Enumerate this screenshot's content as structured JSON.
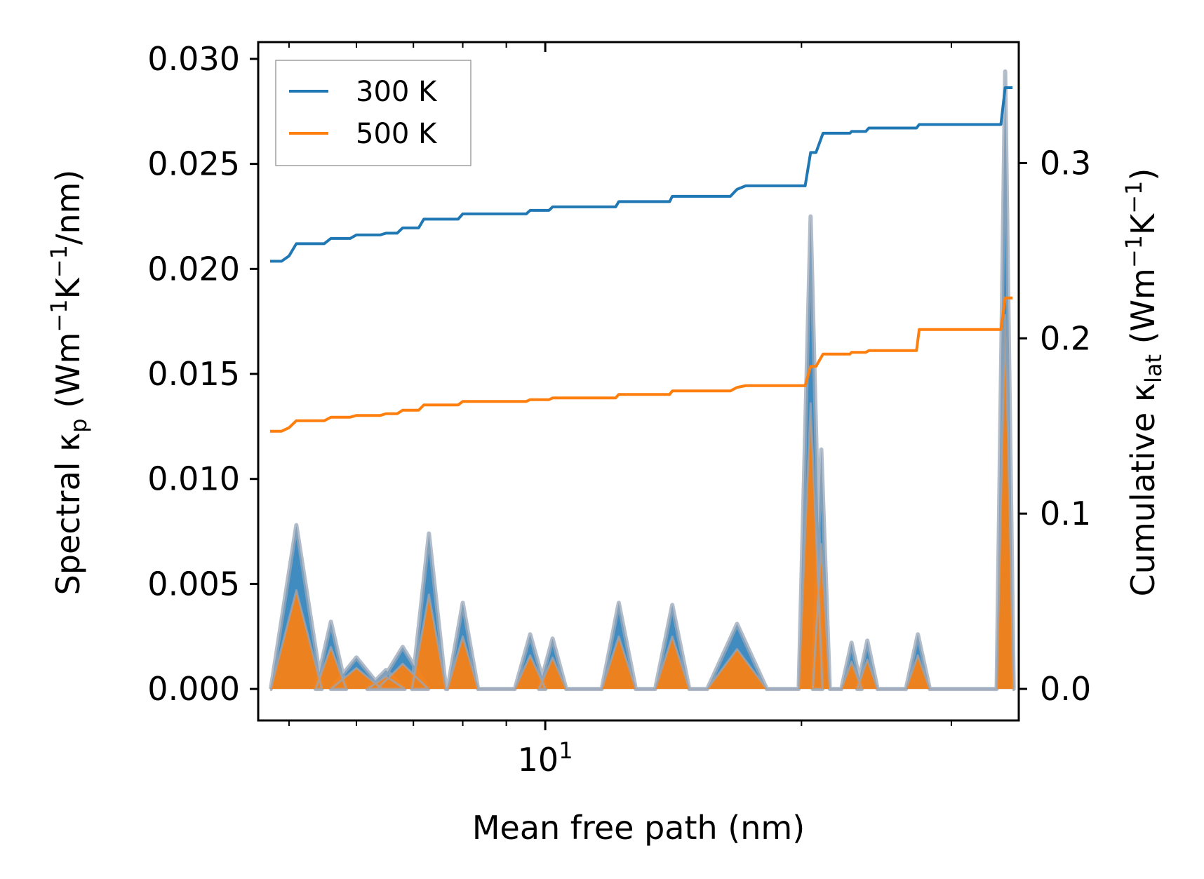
{
  "chart_data": {
    "type": "line",
    "title": "",
    "xlabel": "Mean free path (nm)",
    "ylabel_left": "Spectral κ",
    "ylabel_left_sub": "p",
    "ylabel_left_units": "(Wm",
    "ylabel_left_units2": "K",
    "ylabel_left_units3": "/nm)",
    "ylabel_right": "Cumulative κ",
    "ylabel_right_sub": "lat",
    "ylabel_right_units": "(Wm",
    "ylabel_right_units2": "K",
    "ylabel_right_units3": ")",
    "exp_neg1": "−1",
    "x_scale": "log",
    "xlim": [
      4.6,
      36
    ],
    "ylim_left": [
      -0.0015,
      0.0308
    ],
    "ylim_right": [
      -0.018,
      0.369
    ],
    "x_tick_major": [
      {
        "value": 10,
        "base": "10",
        "exp": "1"
      }
    ],
    "x_tick_minor": [
      5,
      6,
      7,
      8,
      9,
      20,
      30
    ],
    "y_left_ticks": [
      {
        "value": 0.0,
        "label": "0.000"
      },
      {
        "value": 0.005,
        "label": "0.005"
      },
      {
        "value": 0.01,
        "label": "0.010"
      },
      {
        "value": 0.015,
        "label": "0.015"
      },
      {
        "value": 0.02,
        "label": "0.020"
      },
      {
        "value": 0.025,
        "label": "0.025"
      },
      {
        "value": 0.03,
        "label": "0.030"
      }
    ],
    "y_right_ticks": [
      {
        "value": 0.0,
        "label": "0.0"
      },
      {
        "value": 0.1,
        "label": "0.1"
      },
      {
        "value": 0.2,
        "label": "0.2"
      },
      {
        "value": 0.3,
        "label": "0.3"
      }
    ],
    "legend": {
      "position": "top-left",
      "entries": [
        "300 K",
        "500 K"
      ]
    },
    "colors": {
      "300 K": "#1f77b4",
      "500 K": "#ff7f0e",
      "spectral_edge": "#9aa7b8"
    },
    "spectral_series": [
      {
        "name": "300 K",
        "peaks": [
          {
            "x": 5.1,
            "y": 0.0078,
            "w": 0.03
          },
          {
            "x": 5.6,
            "y": 0.0032,
            "w": 0.018
          },
          {
            "x": 6.0,
            "y": 0.0015,
            "w": 0.03
          },
          {
            "x": 6.5,
            "y": 0.0009,
            "w": 0.022
          },
          {
            "x": 6.8,
            "y": 0.002,
            "w": 0.03
          },
          {
            "x": 7.3,
            "y": 0.0074,
            "w": 0.02
          },
          {
            "x": 8.0,
            "y": 0.0041,
            "w": 0.018
          },
          {
            "x": 9.6,
            "y": 0.0026,
            "w": 0.018
          },
          {
            "x": 10.2,
            "y": 0.0024,
            "w": 0.016
          },
          {
            "x": 12.2,
            "y": 0.0041,
            "w": 0.02
          },
          {
            "x": 14.1,
            "y": 0.004,
            "w": 0.02
          },
          {
            "x": 16.8,
            "y": 0.0031,
            "w": 0.035
          },
          {
            "x": 20.5,
            "y": 0.0225,
            "w": 0.014
          },
          {
            "x": 21.1,
            "y": 0.0114,
            "w": 0.01
          },
          {
            "x": 22.9,
            "y": 0.0022,
            "w": 0.012
          },
          {
            "x": 23.9,
            "y": 0.0023,
            "w": 0.012
          },
          {
            "x": 27.4,
            "y": 0.0026,
            "w": 0.014
          },
          {
            "x": 34.7,
            "y": 0.0294,
            "w": 0.01
          }
        ]
      },
      {
        "name": "500 K",
        "peaks": [
          {
            "x": 5.1,
            "y": 0.0047,
            "w": 0.03
          },
          {
            "x": 5.6,
            "y": 0.002,
            "w": 0.018
          },
          {
            "x": 6.0,
            "y": 0.001,
            "w": 0.03
          },
          {
            "x": 6.5,
            "y": 0.0006,
            "w": 0.022
          },
          {
            "x": 6.8,
            "y": 0.0012,
            "w": 0.03
          },
          {
            "x": 7.3,
            "y": 0.0045,
            "w": 0.02
          },
          {
            "x": 8.0,
            "y": 0.0025,
            "w": 0.018
          },
          {
            "x": 9.6,
            "y": 0.0016,
            "w": 0.018
          },
          {
            "x": 10.2,
            "y": 0.0015,
            "w": 0.016
          },
          {
            "x": 12.2,
            "y": 0.0025,
            "w": 0.02
          },
          {
            "x": 14.1,
            "y": 0.0025,
            "w": 0.02
          },
          {
            "x": 16.8,
            "y": 0.0019,
            "w": 0.035
          },
          {
            "x": 20.5,
            "y": 0.0136,
            "w": 0.014
          },
          {
            "x": 21.1,
            "y": 0.0069,
            "w": 0.01
          },
          {
            "x": 22.9,
            "y": 0.0013,
            "w": 0.012
          },
          {
            "x": 23.9,
            "y": 0.0014,
            "w": 0.012
          },
          {
            "x": 27.4,
            "y": 0.0016,
            "w": 0.014
          },
          {
            "x": 34.7,
            "y": 0.0178,
            "w": 0.01
          }
        ]
      }
    ],
    "cumulative_series": [
      {
        "name": "300 K",
        "points": [
          [
            4.75,
            0.244
          ],
          [
            4.9,
            0.244
          ],
          [
            5.0,
            0.247
          ],
          [
            5.1,
            0.254
          ],
          [
            5.5,
            0.254
          ],
          [
            5.6,
            0.257
          ],
          [
            5.9,
            0.257
          ],
          [
            6.0,
            0.259
          ],
          [
            6.4,
            0.259
          ],
          [
            6.5,
            0.26
          ],
          [
            6.7,
            0.26
          ],
          [
            6.8,
            0.263
          ],
          [
            7.1,
            0.263
          ],
          [
            7.2,
            0.268
          ],
          [
            7.9,
            0.268
          ],
          [
            8.0,
            0.271
          ],
          [
            9.5,
            0.271
          ],
          [
            9.6,
            0.273
          ],
          [
            10.1,
            0.273
          ],
          [
            10.2,
            0.275
          ],
          [
            12.1,
            0.275
          ],
          [
            12.2,
            0.278
          ],
          [
            14.0,
            0.278
          ],
          [
            14.1,
            0.281
          ],
          [
            16.5,
            0.281
          ],
          [
            16.8,
            0.285
          ],
          [
            17.2,
            0.287
          ],
          [
            20.2,
            0.287
          ],
          [
            20.5,
            0.306
          ],
          [
            20.8,
            0.306
          ],
          [
            21.2,
            0.317
          ],
          [
            22.8,
            0.317
          ],
          [
            22.9,
            0.318
          ],
          [
            23.8,
            0.318
          ],
          [
            24.0,
            0.32
          ],
          [
            27.3,
            0.32
          ],
          [
            27.5,
            0.322
          ],
          [
            34.3,
            0.322
          ],
          [
            34.7,
            0.343
          ],
          [
            35.4,
            0.343
          ]
        ]
      },
      {
        "name": "500 K",
        "points": [
          [
            4.75,
            0.147
          ],
          [
            4.9,
            0.147
          ],
          [
            5.0,
            0.149
          ],
          [
            5.1,
            0.153
          ],
          [
            5.5,
            0.153
          ],
          [
            5.6,
            0.155
          ],
          [
            5.9,
            0.155
          ],
          [
            6.0,
            0.156
          ],
          [
            6.4,
            0.156
          ],
          [
            6.5,
            0.157
          ],
          [
            6.7,
            0.157
          ],
          [
            6.8,
            0.159
          ],
          [
            7.1,
            0.159
          ],
          [
            7.2,
            0.162
          ],
          [
            7.9,
            0.162
          ],
          [
            8.0,
            0.164
          ],
          [
            9.5,
            0.164
          ],
          [
            9.6,
            0.165
          ],
          [
            10.1,
            0.165
          ],
          [
            10.2,
            0.166
          ],
          [
            12.1,
            0.166
          ],
          [
            12.2,
            0.168
          ],
          [
            14.0,
            0.168
          ],
          [
            14.1,
            0.17
          ],
          [
            16.5,
            0.17
          ],
          [
            16.8,
            0.172
          ],
          [
            17.2,
            0.173
          ],
          [
            20.2,
            0.173
          ],
          [
            20.5,
            0.184
          ],
          [
            20.8,
            0.184
          ],
          [
            21.2,
            0.191
          ],
          [
            22.8,
            0.191
          ],
          [
            22.9,
            0.192
          ],
          [
            23.8,
            0.192
          ],
          [
            24.0,
            0.193
          ],
          [
            27.3,
            0.193
          ],
          [
            27.5,
            0.205
          ],
          [
            34.3,
            0.205
          ],
          [
            34.7,
            0.223
          ],
          [
            35.4,
            0.223
          ]
        ]
      }
    ]
  }
}
